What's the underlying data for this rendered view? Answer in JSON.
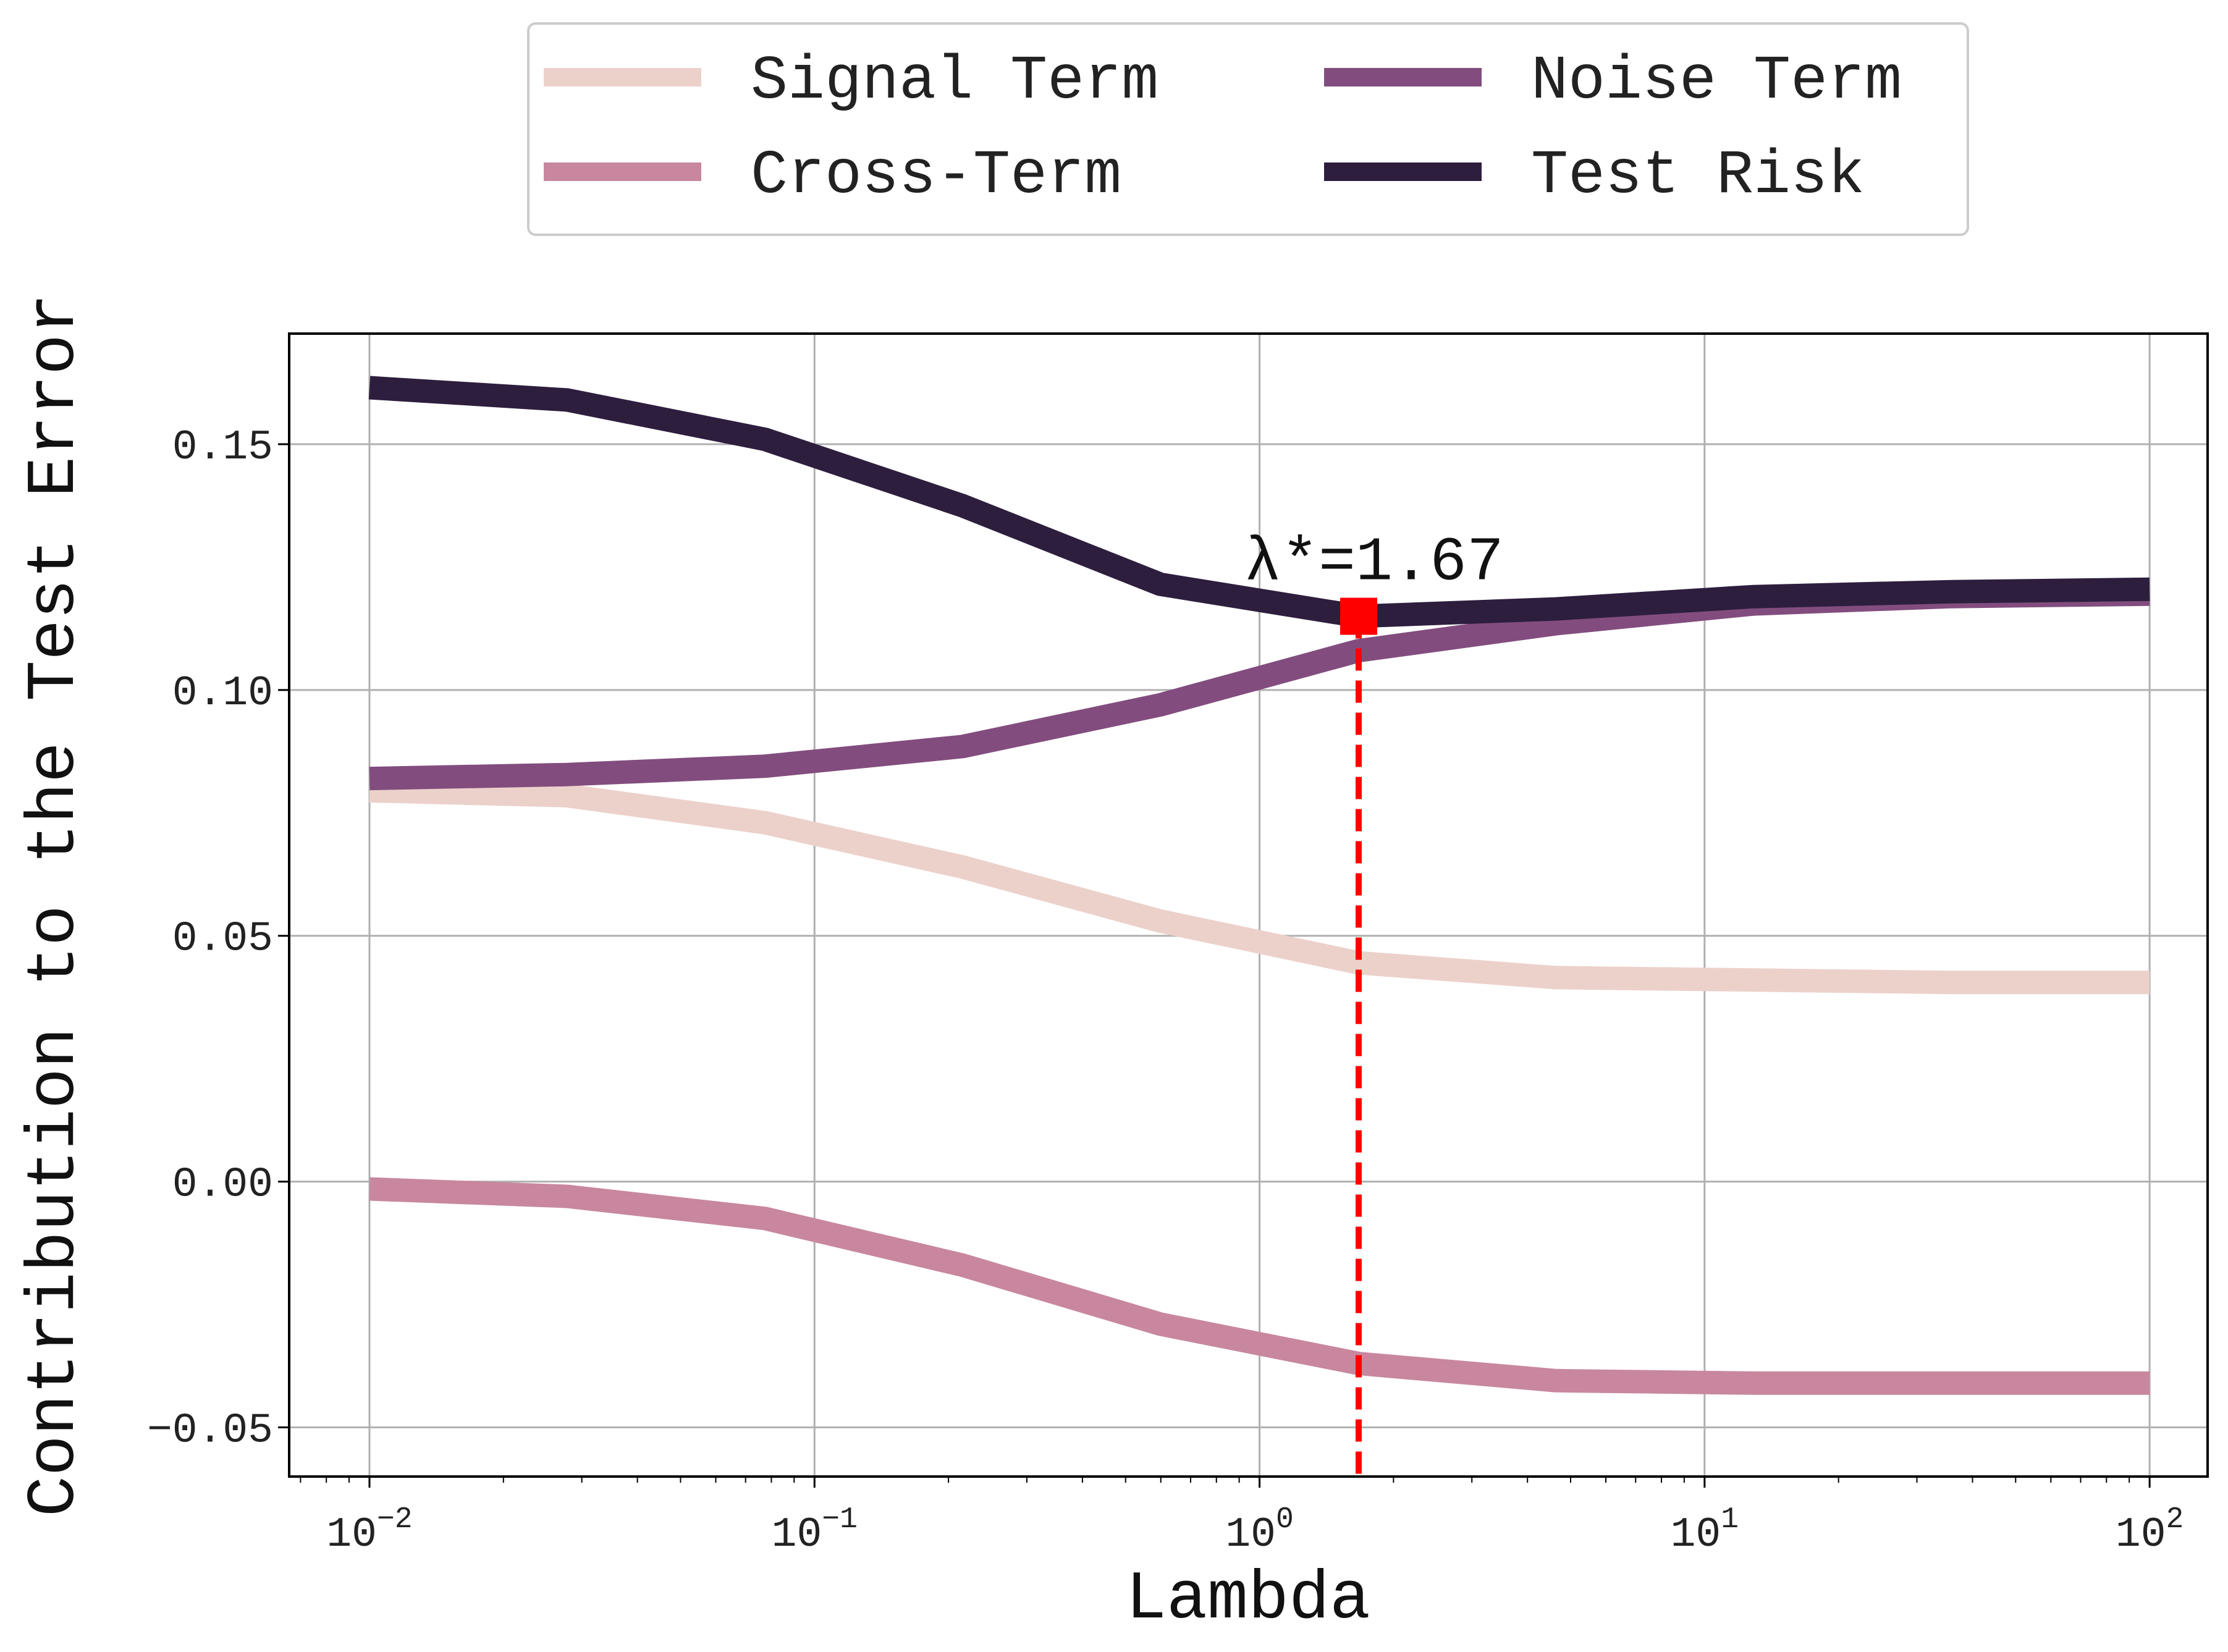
{
  "chart_data": {
    "type": "line",
    "xscale": "log",
    "xlabel": "Lambda",
    "ylabel": "Contribution to the Test Error",
    "xlim": [
      0.0066,
      135
    ],
    "ylim": [
      -0.06,
      0.1725
    ],
    "grid": true,
    "legend_position": "above plot, 2 columns",
    "x_ticks": [
      {
        "value": 0.01,
        "base": "10",
        "exp": "−2"
      },
      {
        "value": 0.1,
        "base": "10",
        "exp": "−1"
      },
      {
        "value": 1,
        "base": "10",
        "exp": "0"
      },
      {
        "value": 10,
        "base": "10",
        "exp": "1"
      },
      {
        "value": 100,
        "base": "10",
        "exp": "2"
      }
    ],
    "y_ticks": [
      {
        "value": 0.15,
        "label": "0.15"
      },
      {
        "value": 0.1,
        "label": "0.10"
      },
      {
        "value": 0.05,
        "label": "0.05"
      },
      {
        "value": 0.0,
        "label": "0.00"
      },
      {
        "value": -0.05,
        "label": "−0.05"
      }
    ],
    "x": [
      0.01,
      0.0278,
      0.0774,
      0.215,
      0.599,
      1.67,
      4.64,
      12.9,
      35.9,
      100
    ],
    "series": [
      {
        "name": "Signal Term",
        "color": "#ecd1cb",
        "values": [
          0.0795,
          0.0785,
          0.073,
          0.064,
          0.053,
          0.0445,
          0.0415,
          0.041,
          0.0405,
          0.0405
        ]
      },
      {
        "name": "Cross-Term",
        "color": "#c8879f",
        "values": [
          -0.0015,
          -0.003,
          -0.0075,
          -0.017,
          -0.029,
          -0.037,
          -0.0405,
          -0.041,
          -0.041,
          -0.041
        ]
      },
      {
        "name": "Noise Term",
        "color": "#824d7e",
        "values": [
          0.082,
          0.0828,
          0.0845,
          0.0885,
          0.097,
          0.108,
          0.1135,
          0.1175,
          0.119,
          0.1195
        ]
      },
      {
        "name": "Test Risk",
        "color": "#2d1e3e",
        "values": [
          0.1615,
          0.159,
          0.151,
          0.1375,
          0.1215,
          0.115,
          0.1165,
          0.119,
          0.12,
          0.1205
        ]
      }
    ],
    "annotation": {
      "text": "λ*=1.67",
      "x": 1.67,
      "y": 0.115,
      "marker_color": "#ff0000",
      "line_color": "#ff0000",
      "line_style": "dashed"
    }
  }
}
